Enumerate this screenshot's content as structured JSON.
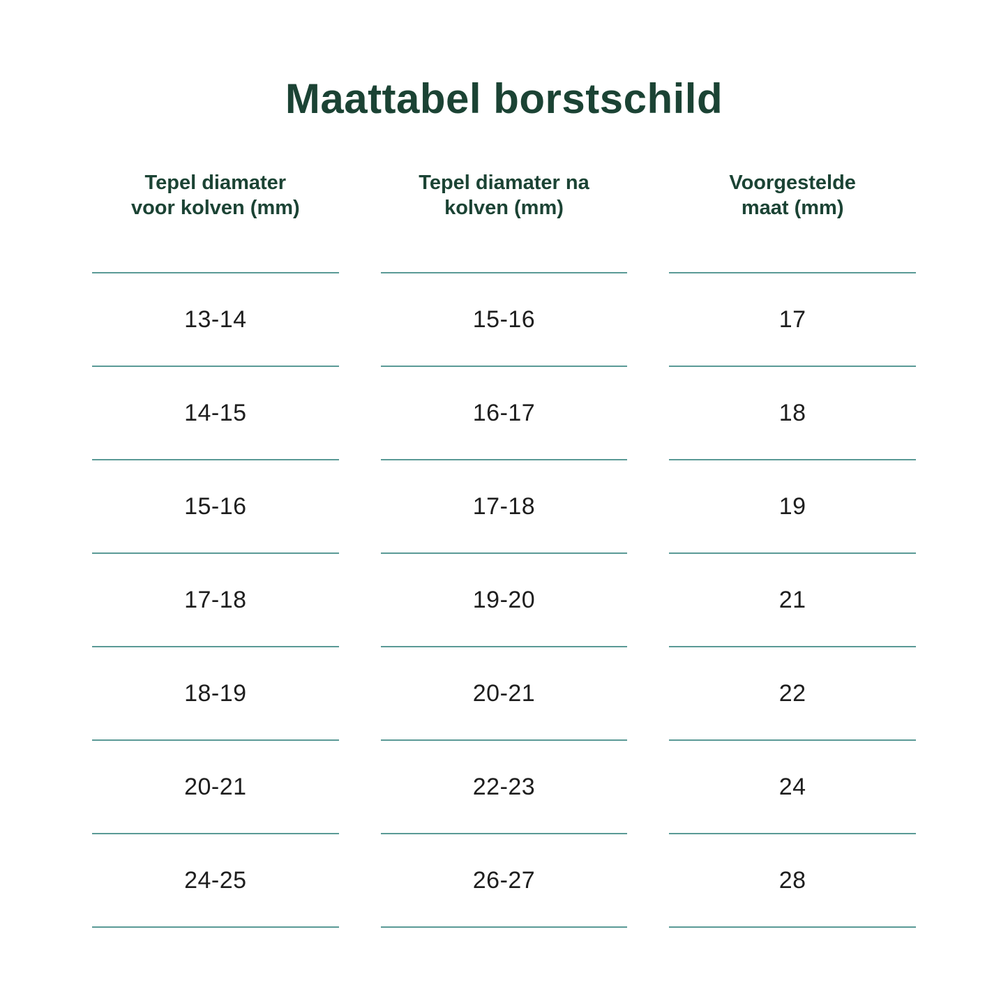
{
  "title": "Maattabel borstschild",
  "colors": {
    "heading": "#1b4334",
    "divider_line": "#5a9a96",
    "cell_text": "#1e1e1e",
    "background": "#ffffff"
  },
  "table": {
    "headers": [
      "Tepel diamater\nvoor kolven (mm)",
      "Tepel diamater na\nkolven (mm)",
      "Voorgestelde\nmaat (mm)"
    ]
  },
  "chart_data": {
    "type": "table",
    "title": "Maattabel borstschild",
    "columns": [
      "Tepel diamater voor kolven (mm)",
      "Tepel diamater na kolven (mm)",
      "Voorgestelde maat (mm)"
    ],
    "rows": [
      [
        "13-14",
        "15-16",
        "17"
      ],
      [
        "14-15",
        "16-17",
        "18"
      ],
      [
        "15-16",
        "17-18",
        "19"
      ],
      [
        "17-18",
        "19-20",
        "21"
      ],
      [
        "18-19",
        "20-21",
        "22"
      ],
      [
        "20-21",
        "22-23",
        "24"
      ],
      [
        "24-25",
        "26-27",
        "28"
      ]
    ]
  }
}
